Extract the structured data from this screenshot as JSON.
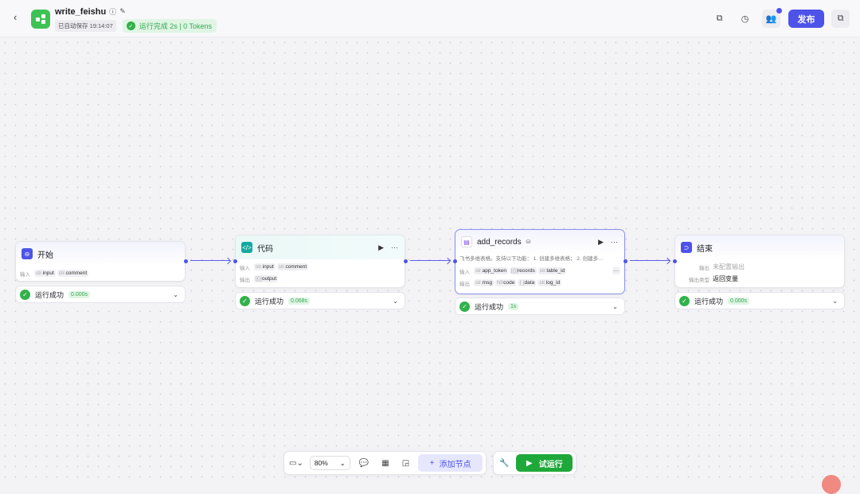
{
  "header": {
    "title": "write_feishu",
    "autosave": "已自动保存 19:14:07",
    "run_status": "运行完成 2s | 0 Tokens",
    "publish_label": "发布"
  },
  "nodes": {
    "start": {
      "title": "开始",
      "input_label": "输入",
      "inputs": [
        {
          "type": "str.",
          "name": "input"
        },
        {
          "type": "str.",
          "name": "comment"
        }
      ],
      "status": "运行成功",
      "duration": "0.000s"
    },
    "code": {
      "title": "代码",
      "input_label": "输入",
      "output_label": "输出",
      "inputs": [
        {
          "type": "str.",
          "name": "input"
        },
        {
          "type": "str.",
          "name": "comment"
        }
      ],
      "outputs": [
        {
          "type": "[{}]",
          "name": "output"
        }
      ],
      "status": "运行成功",
      "duration": "0.068s"
    },
    "add_records": {
      "title": "add_records",
      "description": "飞书多维表格。支持以下功能： 1. 创建多维表格； 2. 创建多…",
      "input_label": "输入",
      "output_label": "输出",
      "inputs": [
        {
          "type": "str.",
          "name": "app_token"
        },
        {
          "type": "[{}]",
          "name": "records"
        },
        {
          "type": "str.",
          "name": "table_id"
        }
      ],
      "more": "···",
      "outputs": [
        {
          "type": "N0",
          "name": "code"
        },
        {
          "type": "{ }",
          "name": "data"
        },
        {
          "type": "str.",
          "name": "log_id"
        }
      ],
      "output_first": {
        "type": "str.",
        "name": "msg"
      },
      "status": "运行成功",
      "duration": "1s"
    },
    "end": {
      "title": "结束",
      "output_label": "输出",
      "output_value": "未配置输出",
      "output_type_label": "输出类型",
      "output_type_value": "返回变量",
      "status": "运行成功",
      "duration": "0.000s"
    }
  },
  "toolbar": {
    "zoom": "80%",
    "add_node": "添加节点",
    "trial_run": "试运行"
  },
  "colors": {
    "accent": "#4d53e8",
    "success": "#1fa83a"
  }
}
